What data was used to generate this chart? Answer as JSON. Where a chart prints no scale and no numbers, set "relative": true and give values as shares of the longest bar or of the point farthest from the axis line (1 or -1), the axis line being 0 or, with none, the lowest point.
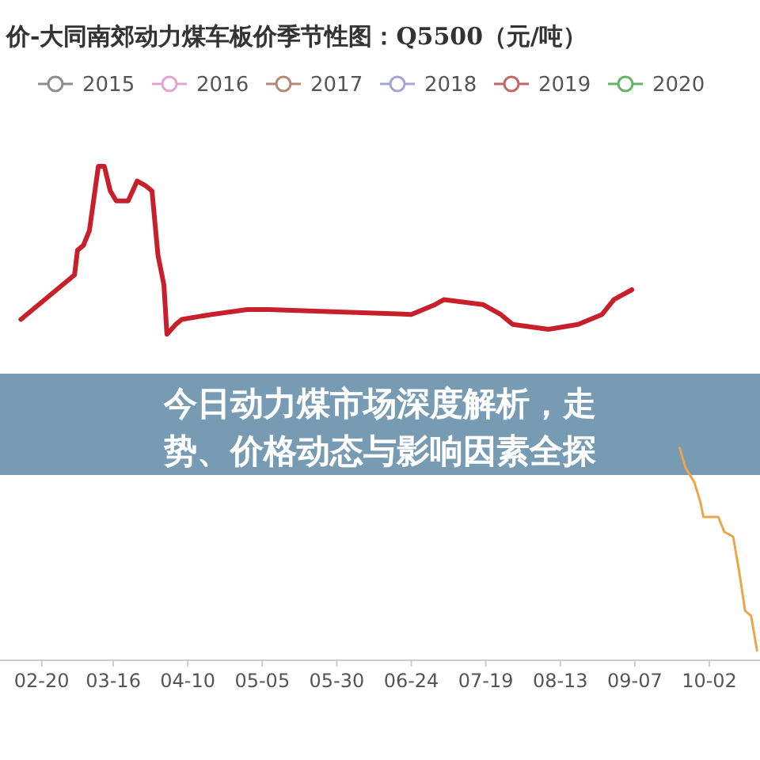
{
  "chart_data": {
    "type": "line",
    "title": "价-大同南郊动力煤车板价季节性图：Q5500（元/吨）",
    "annotations": [
      "今日动力煤市场深度解析，走势、价格动态与影响因素全探"
    ],
    "relative": true,
    "legend": "top",
    "xlim": [
      "--02-06",
      "--10-19"
    ],
    "xticks": [
      {
        "value": "--02-20",
        "label": "02-20"
      },
      {
        "value": "--03-16",
        "label": "03-16"
      },
      {
        "value": "--04-10",
        "label": "04-10"
      },
      {
        "value": "--05-05",
        "label": "05-05"
      },
      {
        "value": "--05-30",
        "label": "05-30"
      },
      {
        "value": "--06-24",
        "label": "06-24"
      },
      {
        "value": "--07-19",
        "label": "07-19"
      },
      {
        "value": "--08-13",
        "label": "08-13"
      },
      {
        "value": "--09-07",
        "label": "09-07"
      },
      {
        "value": "--10-02",
        "label": "10-02"
      }
    ],
    "series": [
      {
        "name": "2015",
        "color": "#8c8c8c"
      },
      {
        "name": "2016",
        "color": "#e3a3cf"
      },
      {
        "name": "2017",
        "color": "#b38a78"
      },
      {
        "name": "2018",
        "color": "#a3a3d6"
      },
      {
        "name": "2019",
        "color": "#c46464"
      },
      {
        "name": "2020",
        "color": "#64b464"
      },
      {
        "color": "#c8202a",
        "x": [
          "--02-13",
          "--02-23",
          "--02-27",
          "--03-03",
          "--03-04",
          "--03-06",
          "--03-08",
          "--03-11",
          "--03-13",
          "--03-15",
          "--03-17",
          "--03-21",
          "--03-24",
          "--03-27",
          "--03-29",
          "--03-31",
          "--04-02",
          "--04-03",
          "--04-06",
          "--04-08",
          "--04-18",
          "--04-30",
          "--05-07",
          "--06-24",
          "--07-02",
          "--07-05",
          "--07-18",
          "--07-24",
          "--07-28",
          "--08-09",
          "--08-19",
          "--08-27",
          "--08-31",
          "--09-03",
          "--09-06"
        ],
        "values": [
          0.69,
          0.74,
          0.76,
          0.78,
          0.83,
          0.84,
          0.87,
          1,
          1,
          0.95,
          0.93,
          0.93,
          0.97,
          0.96,
          0.95,
          0.82,
          0.76,
          0.66,
          0.68,
          0.69,
          0.7,
          0.71,
          0.71,
          0.7,
          0.72,
          0.73,
          0.72,
          0.7,
          0.68,
          0.67,
          0.68,
          0.7,
          0.73,
          0.74,
          0.75
        ]
      },
      {
        "color": "#eda54a",
        "x": [
          "--09-22",
          "--09-24",
          "--09-27",
          "--09-29",
          "--09-30",
          "--10-05",
          "--10-07",
          "--10-10",
          "--10-12",
          "--10-14",
          "--10-16",
          "--10-18"
        ],
        "values": [
          0.43,
          0.39,
          0.36,
          0.32,
          0.29,
          0.29,
          0.26,
          0.25,
          0.18,
          0.1,
          0.09,
          0.02
        ]
      }
    ]
  }
}
